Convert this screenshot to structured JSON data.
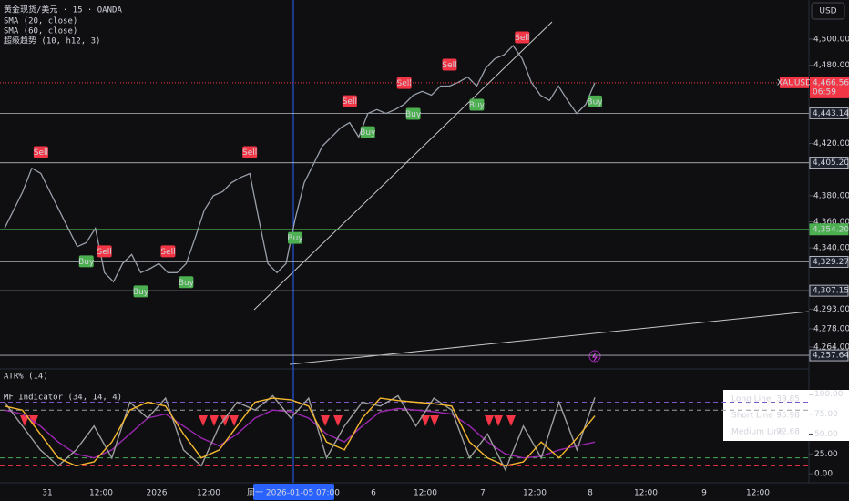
{
  "header": {
    "symbol": "黄金现货/美元 · 15 · OANDA",
    "indicators": [
      "SMA (20, close)",
      "SMA (60, close)",
      "超级趋势 (10, h12, 3)"
    ],
    "currency": "USD",
    "atr_pane": "ATR% (14)"
  },
  "chart_data": [
    {
      "type": "line",
      "color": "#9aa0aa",
      "values": [
        4355,
        4369,
        4383,
        4401,
        4397,
        4383,
        4369,
        4355,
        4341,
        4344,
        4355,
        4321,
        4314,
        4328,
        4335,
        4321,
        4324,
        4328,
        4321,
        4321,
        4328,
        4348,
        4369,
        4380,
        4383,
        4390,
        4394,
        4397,
        4362,
        4328,
        4321,
        4328,
        4362,
        4390,
        4404,
        4418,
        4425,
        4432,
        4436,
        4425,
        4443,
        4446,
        4443,
        4446,
        4450,
        4457,
        4460,
        4457,
        4464,
        4464,
        4467,
        4471,
        4464,
        4478,
        4485,
        4488,
        4495,
        4485,
        4467,
        4457,
        4453,
        4464,
        4453,
        4443,
        4450,
        4466.56
      ],
      "signals": [
        null,
        null,
        null,
        null,
        "Sell",
        null,
        null,
        null,
        null,
        "Buy",
        null,
        "Sell",
        null,
        null,
        null,
        "Buy",
        null,
        null,
        "Sell",
        null,
        "Buy",
        null,
        null,
        null,
        null,
        null,
        null,
        "Sell",
        null,
        null,
        null,
        null,
        "Buy",
        null,
        null,
        null,
        null,
        null,
        "Sell",
        null,
        "Buy",
        null,
        null,
        null,
        "Sell",
        "Buy",
        null,
        null,
        null,
        "Sell",
        null,
        null,
        "Buy",
        null,
        null,
        null,
        null,
        "Sell",
        null,
        null,
        null,
        null,
        null,
        null,
        null,
        "Buy"
      ],
      "signal_colors": {
        "Buy": "#4caf50",
        "Sell": "#f23645"
      },
      "ylim": [
        4250.7,
        4530
      ],
      "yticks": [
        {
          "value": 4500,
          "label": "4,500.000"
        },
        {
          "value": 4480,
          "label": "4,480.000"
        },
        {
          "value": 4420,
          "label": "4,420.000"
        },
        {
          "value": 4380,
          "label": "4,380.000"
        },
        {
          "value": 4360,
          "label": "4,360.000"
        },
        {
          "value": 4340,
          "label": "4,340.000"
        },
        {
          "value": 4293,
          "label": "4,293.000"
        },
        {
          "value": 4278,
          "label": "4,278.000"
        },
        {
          "value": 4264,
          "label": "4,264.000"
        }
      ],
      "levels": [
        {
          "value": 4443.141,
          "label": "4,443.141",
          "color": "#b2b5be"
        },
        {
          "value": 4405.204,
          "label": "4,405.204",
          "color": "#d1d4dc"
        },
        {
          "value": 4354.206,
          "label": "4,354.206",
          "color": "#4caf50"
        },
        {
          "value": 4329.271,
          "label": "4,329.271",
          "color": "#b2b5be"
        },
        {
          "value": 4307.154,
          "label": "4,307.154",
          "color": "#b2b5be"
        },
        {
          "value": 4257.641,
          "label": "4,257.641",
          "color": "#b2b5be"
        }
      ],
      "last_price": {
        "symbol": "XAUUSD",
        "value": 4466.56,
        "label": "4,466.560",
        "countdown": "06:59",
        "color": "#f23645"
      },
      "x_labels": [
        "31",
        "12:00",
        "2026",
        "12:00",
        "6",
        "12:00",
        "7",
        "12:00",
        "8",
        "12:00",
        "9",
        "12:00"
      ],
      "x_highlight": "周一 2026-01-05  07:00"
    },
    {
      "type": "line",
      "title": "MF Indicator (34, 14, 4)",
      "series": [
        {
          "name": "Long Line",
          "color": "#9c27b0",
          "values": [
            80,
            75,
            60,
            40,
            25,
            20,
            30,
            50,
            70,
            75,
            60,
            45,
            35,
            50,
            70,
            80,
            78,
            70,
            50,
            40,
            60,
            78,
            82,
            80,
            78,
            75,
            60,
            40,
            25,
            20,
            22,
            30,
            35,
            39.85
          ]
        },
        {
          "name": "Short Line",
          "color": "#9e9e9e",
          "values": [
            90,
            60,
            30,
            10,
            30,
            60,
            20,
            90,
            70,
            95,
            30,
            10,
            60,
            90,
            80,
            98,
            70,
            95,
            20,
            60,
            90,
            85,
            98,
            60,
            95,
            80,
            20,
            50,
            5,
            60,
            20,
            90,
            30,
            95.98
          ]
        },
        {
          "name": "Medium Line",
          "color": "#f5b82e",
          "values": [
            85,
            80,
            50,
            20,
            10,
            15,
            40,
            80,
            90,
            85,
            50,
            20,
            30,
            60,
            90,
            95,
            93,
            85,
            40,
            30,
            70,
            95,
            92,
            90,
            88,
            85,
            40,
            20,
            10,
            15,
            40,
            20,
            45,
            72.68
          ]
        }
      ],
      "ylim": [
        -9,
        110
      ],
      "yticks": [
        {
          "value": 100,
          "label": "100.00"
        },
        {
          "value": 75,
          "label": "75.00"
        },
        {
          "value": 50,
          "label": "50.00"
        },
        {
          "value": 25,
          "label": "25.00"
        },
        {
          "value": 0,
          "label": "0.00"
        }
      ],
      "levels": [
        {
          "value": 90,
          "color": "#7e57c2"
        },
        {
          "value": 80,
          "color": "#9e9e9e"
        },
        {
          "value": 20,
          "color": "#4caf50"
        },
        {
          "value": 10,
          "color": "#f23645"
        }
      ]
    }
  ]
}
